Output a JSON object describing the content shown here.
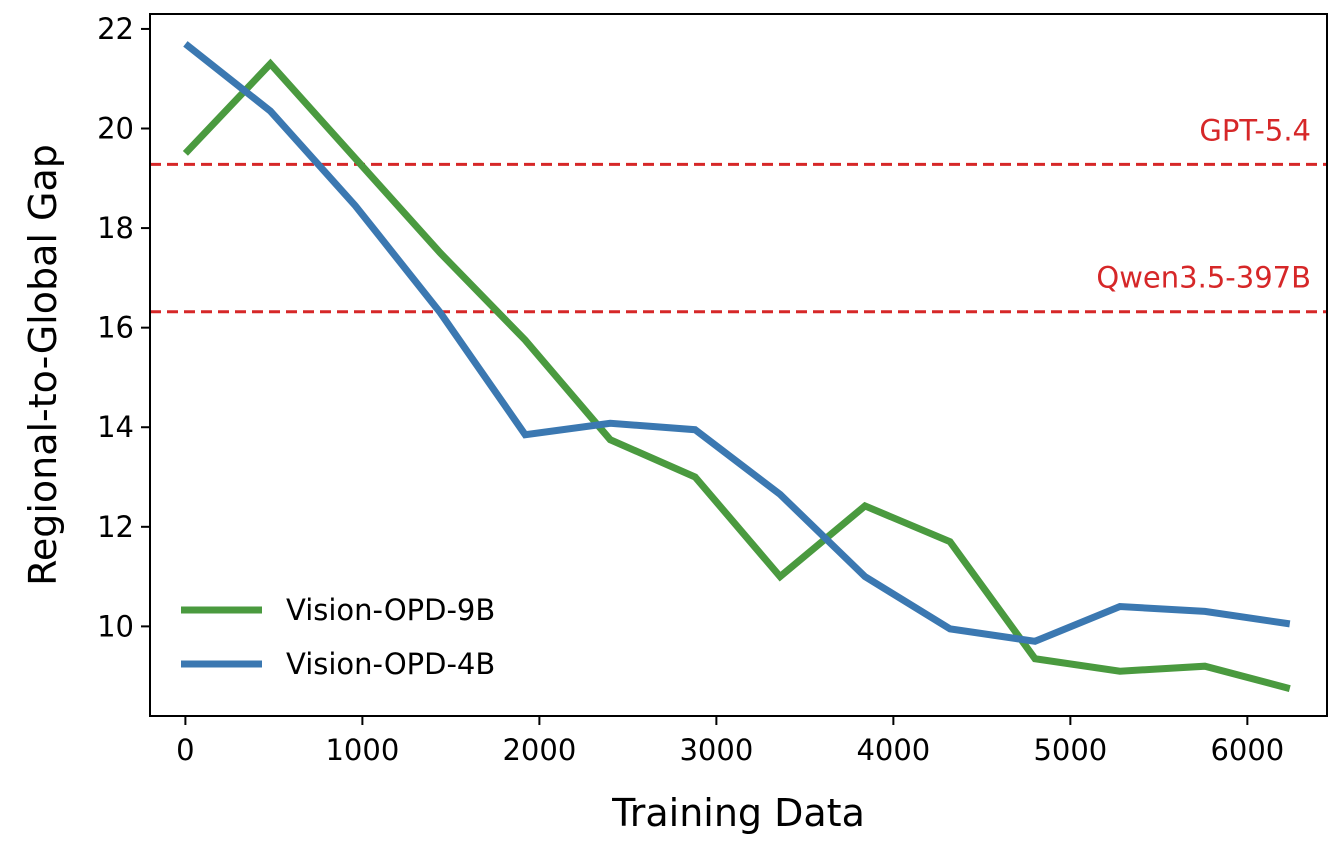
{
  "chart_data": {
    "type": "line",
    "title": "",
    "xlabel": "Training Data",
    "ylabel": "Regional-to-Global Gap",
    "xlim": [
      -200,
      6450
    ],
    "ylim": [
      8.2,
      22.3
    ],
    "xticks": [
      0,
      1000,
      2000,
      3000,
      4000,
      5000,
      6000
    ],
    "yticks": [
      10,
      12,
      14,
      16,
      18,
      20,
      22
    ],
    "x": [
      0,
      480,
      960,
      1440,
      1920,
      2400,
      2880,
      3360,
      3840,
      4320,
      4800,
      5280,
      5760,
      6240
    ],
    "series": [
      {
        "name": "Vision-OPD-9B",
        "color": "#4a9a3f",
        "values": [
          19.5,
          21.3,
          19.4,
          17.5,
          15.75,
          13.75,
          13.0,
          11.0,
          12.42,
          11.7,
          9.35,
          9.1,
          9.2,
          8.75
        ]
      },
      {
        "name": "Vision-OPD-4B",
        "color": "#3b78b1",
        "values": [
          21.7,
          20.35,
          18.45,
          16.3,
          13.85,
          14.08,
          13.95,
          12.65,
          11.0,
          9.95,
          9.7,
          10.4,
          10.3,
          10.05
        ]
      }
    ],
    "reference_lines": [
      {
        "label": "GPT-5.4",
        "value": 19.28,
        "color": "#d62728"
      },
      {
        "label": "Qwen3.5-397B",
        "value": 16.32,
        "color": "#d62728"
      }
    ],
    "legend": {
      "position": "lower-left"
    },
    "grid": false
  }
}
